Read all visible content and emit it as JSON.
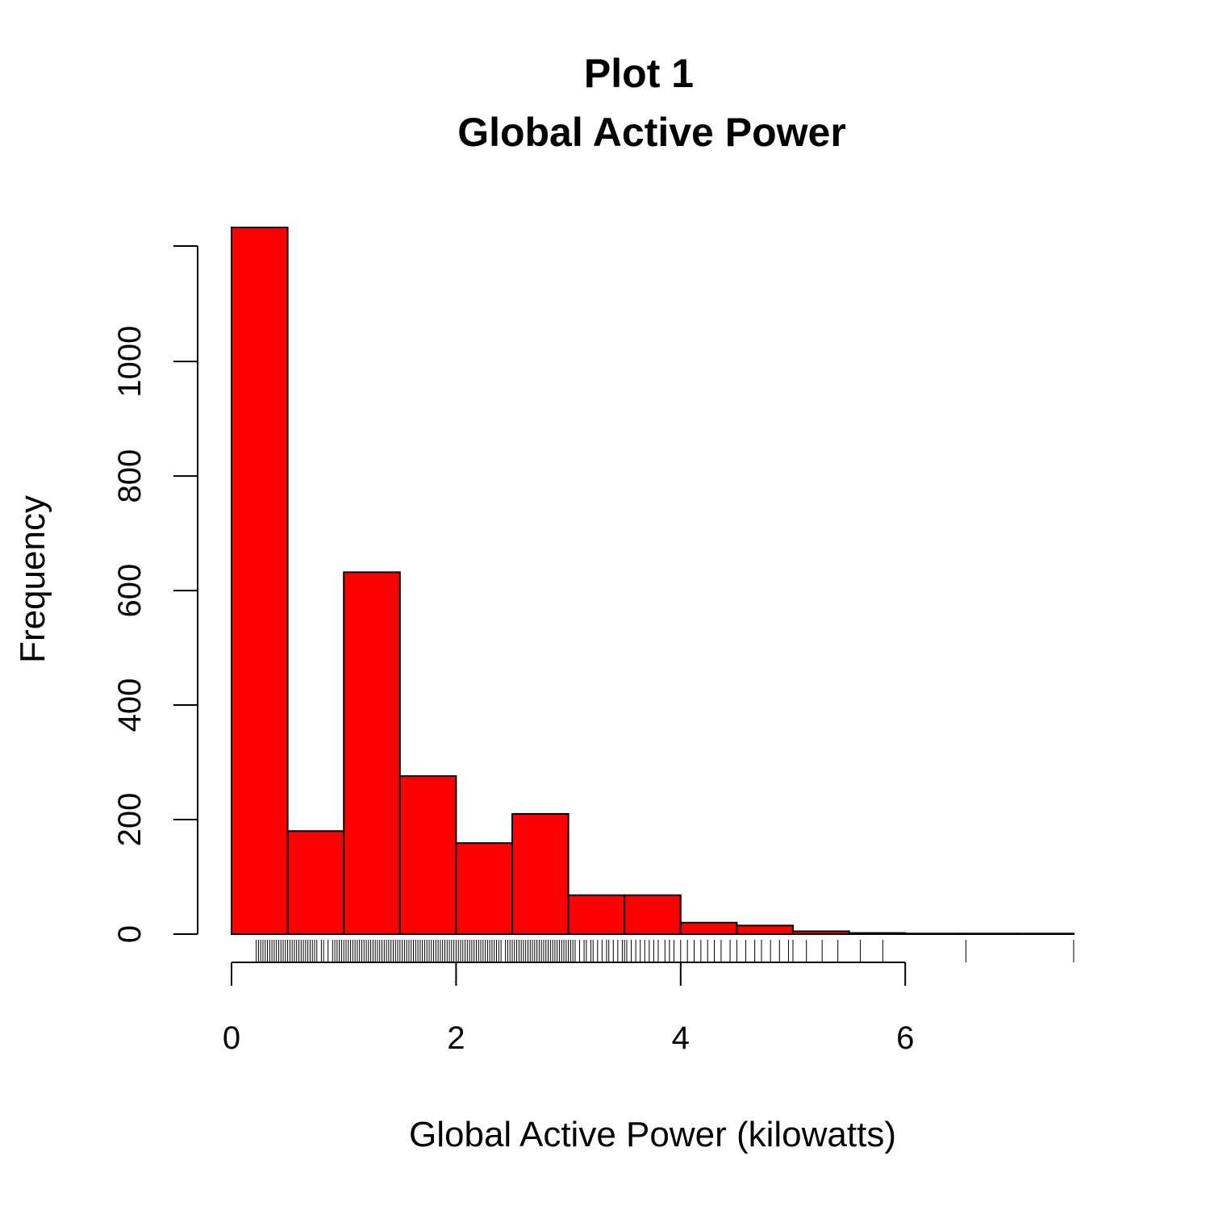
{
  "chart_data": {
    "type": "bar",
    "title": "Plot 1",
    "subtitle": "Global Active Power",
    "xlabel": "Global Active Power (kilowatts)",
    "ylabel": "Frequency",
    "bin_edges": [
      0,
      0.5,
      1,
      1.5,
      2,
      2.5,
      3,
      3.5,
      4,
      4.5,
      5,
      5.5,
      6,
      6.5,
      7,
      7.5
    ],
    "values": [
      1234,
      180,
      632,
      276,
      159,
      210,
      68,
      68,
      20,
      15,
      5,
      2,
      1,
      1,
      1
    ],
    "bar_color": "#FF0000",
    "xlim": [
      0,
      7.5
    ],
    "ylim": [
      0,
      1234
    ],
    "x_ticks": [
      0,
      2,
      4,
      6
    ],
    "x_tick_labels": [
      "0",
      "2",
      "4",
      "6"
    ],
    "y_ticks": [
      0,
      200,
      400,
      600,
      800,
      1000
    ],
    "y_tick_labels": [
      "0",
      "200",
      "400",
      "600",
      "800",
      "1000"
    ],
    "rug": [
      0.22,
      0.24,
      0.26,
      0.28,
      0.3,
      0.32,
      0.34,
      0.36,
      0.38,
      0.4,
      0.42,
      0.44,
      0.46,
      0.48,
      0.5,
      0.52,
      0.54,
      0.56,
      0.58,
      0.6,
      0.62,
      0.64,
      0.66,
      0.68,
      0.7,
      0.72,
      0.74,
      0.76,
      0.8,
      0.82,
      0.86,
      0.9,
      0.92,
      0.94,
      0.96,
      0.98,
      1.0,
      1.02,
      1.04,
      1.06,
      1.08,
      1.1,
      1.12,
      1.14,
      1.16,
      1.18,
      1.2,
      1.22,
      1.24,
      1.26,
      1.28,
      1.3,
      1.32,
      1.34,
      1.36,
      1.38,
      1.4,
      1.42,
      1.44,
      1.46,
      1.48,
      1.5,
      1.52,
      1.54,
      1.56,
      1.58,
      1.6,
      1.62,
      1.64,
      1.66,
      1.68,
      1.7,
      1.72,
      1.74,
      1.76,
      1.78,
      1.8,
      1.82,
      1.84,
      1.86,
      1.88,
      1.9,
      1.92,
      1.94,
      1.96,
      1.98,
      2.0,
      2.02,
      2.04,
      2.06,
      2.08,
      2.1,
      2.12,
      2.14,
      2.16,
      2.18,
      2.2,
      2.22,
      2.24,
      2.26,
      2.28,
      2.3,
      2.32,
      2.34,
      2.36,
      2.38,
      2.4,
      2.44,
      2.46,
      2.48,
      2.5,
      2.52,
      2.54,
      2.56,
      2.58,
      2.6,
      2.62,
      2.64,
      2.66,
      2.68,
      2.7,
      2.72,
      2.74,
      2.76,
      2.78,
      2.8,
      2.82,
      2.84,
      2.86,
      2.88,
      2.9,
      2.92,
      2.94,
      2.96,
      2.98,
      3.0,
      3.02,
      3.04,
      3.06,
      3.1,
      3.14,
      3.16,
      3.2,
      3.22,
      3.26,
      3.3,
      3.34,
      3.36,
      3.4,
      3.44,
      3.48,
      3.5,
      3.52,
      3.56,
      3.6,
      3.64,
      3.68,
      3.72,
      3.76,
      3.8,
      3.86,
      3.9,
      3.94,
      4.0,
      4.06,
      4.12,
      4.18,
      4.24,
      4.3,
      4.36,
      4.44,
      4.5,
      4.58,
      4.66,
      4.72,
      4.8,
      4.88,
      4.96,
      5.0,
      5.12,
      5.26,
      5.4,
      5.6,
      5.8,
      6.54,
      7.5
    ]
  }
}
